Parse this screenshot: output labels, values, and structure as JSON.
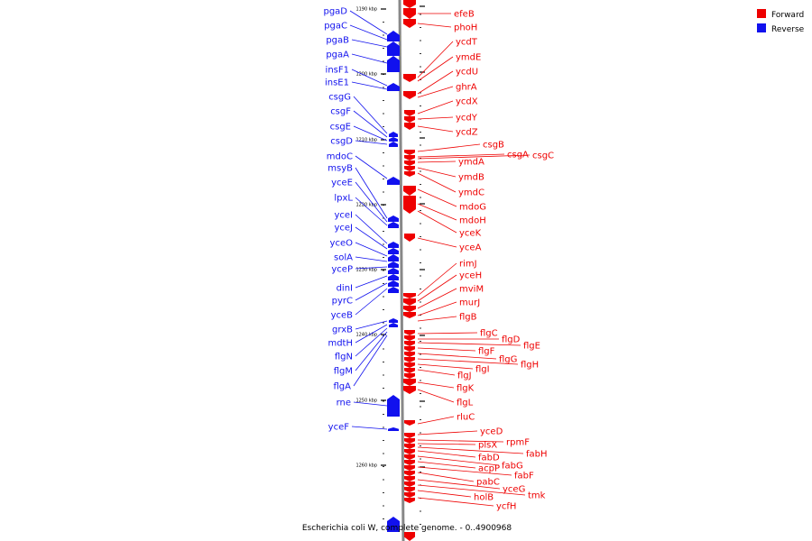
{
  "caption": "Escherichia coli W, complete genome. - 0..4900968",
  "legend": [
    {
      "label": "Forward",
      "color": "#ee0000"
    },
    {
      "label": "Reverse",
      "color": "#1111ee"
    }
  ],
  "colors": {
    "forward": "#ee0000",
    "reverse": "#1111ee",
    "backbone": "#888888"
  },
  "ticks": [
    "1190 kbp",
    "1200 kbp",
    "1210 kbp",
    "1220 kbp",
    "1230 kbp",
    "1240 kbp",
    "1250 kbp",
    "1260 kbp"
  ],
  "reverse_labels": [
    "pgaD",
    "pgaC",
    "pgaB",
    "pgaA",
    "insF1",
    "insE1",
    "csgG",
    "csgF",
    "csgE",
    "csgD",
    "mdoC",
    "msyB",
    "yceE",
    "lpxL",
    "yceI",
    "yceJ",
    "yceO",
    "solA",
    "yceP",
    "dinI",
    "pyrC",
    "yceB",
    "grxB",
    "mdtH",
    "flgN",
    "flgM",
    "flgA",
    "rne",
    "yceF"
  ],
  "forward_labels": [
    "efeB",
    "phoH",
    "ycdT",
    "ymdE",
    "ycdU",
    "ghrA",
    "ycdX",
    "ycdY",
    "ycdZ",
    "csgB",
    "csgA",
    "csgC",
    "ymdA",
    "ymdB",
    "ymdC",
    "mdoG",
    "mdoH",
    "yceK",
    "yceA",
    "rimJ",
    "yceH",
    "mviM",
    "murJ",
    "flgB",
    "flgC",
    "flgD",
    "flgE",
    "flgF",
    "flgG",
    "flgH",
    "flgI",
    "flgJ",
    "flgK",
    "flgL",
    "rluC",
    "yceD",
    "rpmF",
    "plsX",
    "fabH",
    "fabD",
    "fabG",
    "acpP",
    "fabF",
    "pabC",
    "yceG",
    "tmk",
    "holB",
    "ycfH"
  ]
}
